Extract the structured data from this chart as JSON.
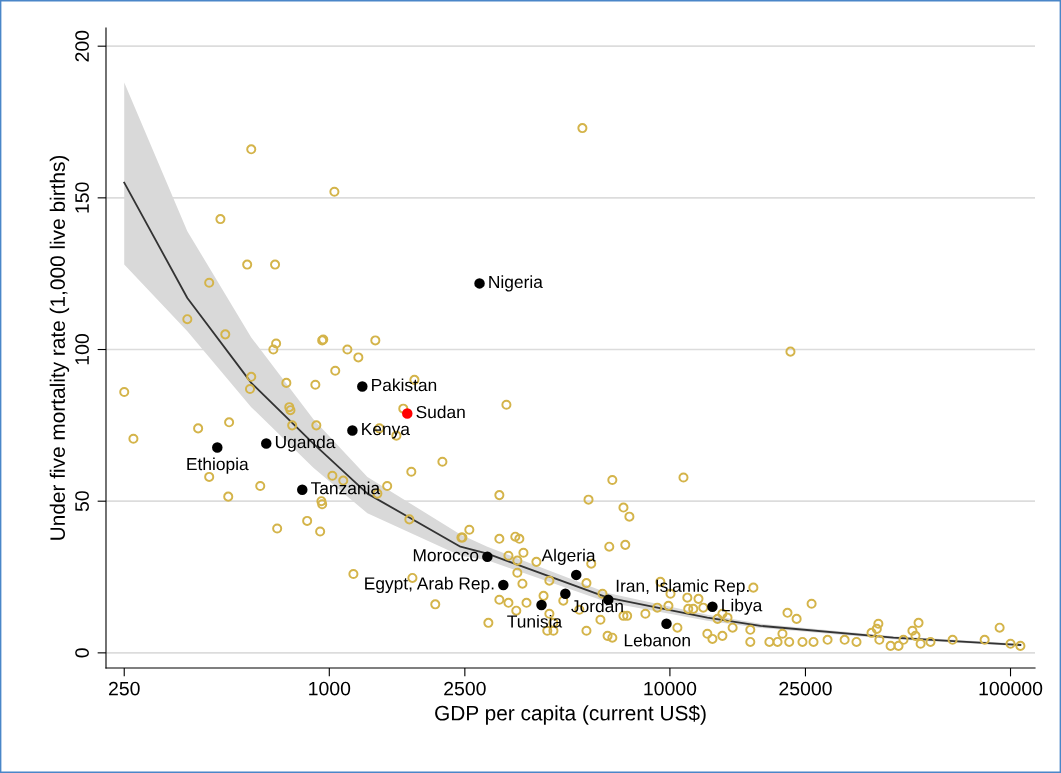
{
  "chart_data": {
    "type": "scatter",
    "xlabel": "GDP per capita (current US$)",
    "ylabel": "Under five mortality rate (1,000 live births)",
    "log": "x",
    "grid": "y",
    "marker": "circle",
    "xlim": [
      221,
      118000
    ],
    "ylim": [
      -5,
      206
    ],
    "xticks": [
      250,
      1000,
      2500,
      10000,
      25000,
      100000
    ],
    "yticks": [
      0,
      50,
      100,
      150,
      200
    ],
    "series": [
      {
        "color": "#d4b44a",
        "x": [
          250,
          266,
          383,
          444,
          479,
          495,
          412,
          444,
          508,
          505,
          590,
          574,
          693,
          698,
          685,
          590,
          585,
          627,
          703,
          748,
          763,
          861,
          916,
          948,
          940,
          953,
          1035,
          960,
          1130,
          1217,
          1041,
          1365,
          910,
          1778,
          1649,
          769,
          778,
          1403,
          1574,
          2148,
          1741,
          1021,
          1099,
          1479,
          1384,
          953,
          1718,
          2443,
          1177,
          1754,
          2047,
          3311,
          3157,
          6776,
          10960,
          5768,
          7305,
          7604,
          2459,
          2577,
          3157,
          3516,
          3614,
          6637,
          7396,
          3715,
          3357,
          3565,
          4055,
          5875,
          3565,
          5688,
          4427,
          3690,
          3157,
          3357,
          3793,
          4256,
          3540,
          2931,
          4427,
          4550,
          4365,
          4550,
          4864,
          5420,
          6252,
          5688,
          6561,
          6776,
          6339,
          7305,
          7490,
          8472,
          9376,
          10040,
          9183,
          9900,
          10520,
          11250,
          12130,
          11320,
          11710,
          12530,
          12880,
          13330,
          14260,
          13800,
          14260,
          14760,
          15280,
          17220,
          17220,
          17580,
          19590,
          20700,
          21400,
          22140,
          23550,
          22400,
          24500,
          26060,
          26400,
          29030,
          22590,
          5534,
          32580,
          35300,
          39080,
          40930,
          40500,
          41200,
          44460,
          46900,
          48500,
          51520,
          53700,
          52600,
          54450,
          58210,
          67600,
          83950,
          92900,
          100000,
          106900
        ],
        "values": [
          86,
          70.6,
          110,
          122,
          143,
          105,
          74,
          58,
          76,
          51.5,
          166,
          128,
          128,
          102,
          100,
          91,
          87,
          55,
          41,
          89,
          81,
          43.5,
          75,
          50,
          40,
          103,
          152,
          103.3,
          100,
          97.4,
          93,
          103,
          88.4,
          90,
          80.5,
          80,
          75,
          74,
          71.6,
          63,
          59.7,
          58.4,
          56.8,
          55,
          52.5,
          49,
          44,
          38,
          26,
          24.7,
          16,
          81.8,
          52,
          57,
          57.8,
          50.5,
          47.9,
          44.9,
          38,
          40.6,
          37.6,
          38.3,
          37.6,
          35,
          35.6,
          33,
          32,
          30.4,
          30,
          29.4,
          26.4,
          23,
          23.8,
          22.8,
          17.5,
          16.5,
          16.5,
          18.8,
          13.9,
          9.9,
          12.9,
          9.9,
          7.3,
          7.3,
          17.2,
          14.2,
          10.9,
          7.3,
          5.6,
          5,
          19.5,
          12.2,
          12.2,
          12.9,
          23.4,
          19.5,
          14.9,
          15.5,
          8.3,
          18.2,
          17.8,
          14.5,
          14.5,
          14.9,
          6.3,
          4.6,
          5.6,
          11.2,
          12.9,
          11.6,
          8.3,
          7.6,
          3.6,
          21.5,
          3.6,
          3.6,
          6.3,
          13.2,
          11.2,
          3.6,
          3.6,
          16.2,
          3.6,
          4.3,
          99.3,
          173,
          4.3,
          3.6,
          6.6,
          9.6,
          7.9,
          4.3,
          2.3,
          2.3,
          4.3,
          7.3,
          9.9,
          5.6,
          3,
          3.6,
          4.3,
          4.3,
          8.3,
          3,
          2.3
        ]
      },
      {
        "color": "#000000",
        "x": [
          2761,
          1250,
          1169,
          653,
          469,
          833,
          2911,
          3243,
          5309,
          4198,
          4932,
          6592,
          13330,
          9772
        ],
        "values": [
          121.8,
          87.8,
          73.3,
          69,
          67.7,
          53.8,
          31.7,
          22.4,
          25.7,
          15.8,
          19.5,
          17.5,
          15.2,
          9.6
        ]
      },
      {
        "color": "#ff0000",
        "x": [
          1694
        ],
        "values": [
          78.9
        ]
      },
      {
        "type": "line",
        "marker": "none",
        "color": "#333333",
        "x": [
          250,
          383,
          590,
          898,
          1294,
          2427,
          2911,
          6561,
          12880,
          18450,
          45300,
          106900
        ],
        "values": [
          155,
          117,
          89,
          69,
          52.5,
          35,
          32.7,
          18.2,
          11.6,
          8.9,
          5,
          2.6
        ],
        "lower": [
          128,
          106,
          81,
          61,
          46,
          32,
          30.5,
          16.7,
          10.6,
          8.2,
          4.5,
          2.2
        ],
        "upper": [
          188,
          139,
          104,
          77,
          58,
          39,
          35,
          19.7,
          12.6,
          9.6,
          5.5,
          3.0
        ]
      }
    ],
    "annotations": [
      {
        "text": "Nigeria",
        "x": 2761,
        "y": 121.8
      },
      {
        "text": "Pakistan",
        "x": 1250,
        "y": 87.8
      },
      {
        "text": "Sudan",
        "x": 1694,
        "y": 78.9
      },
      {
        "text": "Kenya",
        "x": 1169,
        "y": 73.3
      },
      {
        "text": "Uganda",
        "x": 653,
        "y": 69
      },
      {
        "text": "Ethiopia",
        "x": 469,
        "y": 67.7
      },
      {
        "text": "Tanzania",
        "x": 833,
        "y": 53.8
      },
      {
        "text": "Morocco",
        "x": 2911,
        "y": 31.7
      },
      {
        "text": "Egypt, Arab Rep.",
        "x": 3243,
        "y": 22.4
      },
      {
        "text": "Algeria",
        "x": 5309,
        "y": 25.7
      },
      {
        "text": "Tunisia",
        "x": 4198,
        "y": 15.8
      },
      {
        "text": "Jordan",
        "x": 4932,
        "y": 19.5
      },
      {
        "text": "Iran, Islamic Rep.",
        "x": 6592,
        "y": 17.5
      },
      {
        "text": "Libya",
        "x": 13330,
        "y": 15.2
      },
      {
        "text": "Lebanon",
        "x": 9772,
        "y": 9.6
      }
    ]
  }
}
